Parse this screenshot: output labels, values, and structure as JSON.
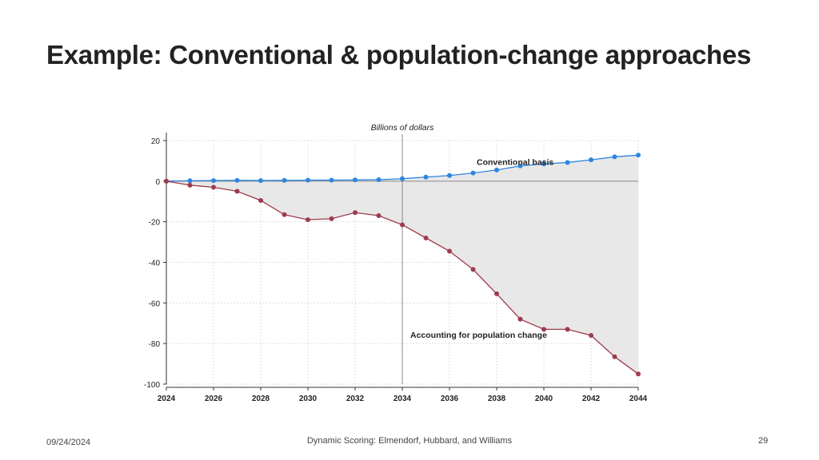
{
  "slide": {
    "title": "Example: Conventional & population-change approaches",
    "footer_date": "09/24/2024",
    "footer_center": "Dynamic Scoring: Elmendorf, Hubbard, and Williams",
    "page_number": "29"
  },
  "chart_data": {
    "type": "line",
    "title": "Billions of dollars",
    "xlabel": "",
    "ylabel": "",
    "x": [
      2024,
      2025,
      2026,
      2027,
      2028,
      2029,
      2030,
      2031,
      2032,
      2033,
      2034,
      2035,
      2036,
      2037,
      2038,
      2039,
      2040,
      2041,
      2042,
      2043,
      2044
    ],
    "xticks": [
      2024,
      2026,
      2028,
      2030,
      2032,
      2034,
      2036,
      2038,
      2040,
      2042,
      2044
    ],
    "yticks": [
      20,
      0,
      -20,
      -40,
      -60,
      -80,
      -100
    ],
    "xlim": [
      2024,
      2044
    ],
    "ylim": [
      -100,
      20
    ],
    "reference_lines": {
      "x": 2034,
      "y": 0
    },
    "grid": true,
    "shaded_between_series": true,
    "colors": {
      "conventional": "#2e86de",
      "population": "#9e3b4e",
      "fill": "#e8e8e8",
      "axis": "#333333",
      "grid": "#cccccc",
      "refline": "#888888"
    },
    "series": [
      {
        "name": "Conventional basis",
        "values": [
          0,
          0.2,
          0.3,
          0.4,
          0.3,
          0.4,
          0.5,
          0.5,
          0.6,
          0.7,
          1.2,
          2.0,
          2.8,
          4.0,
          5.5,
          7.5,
          8.5,
          9.2,
          10.5,
          12.0,
          12.8
        ]
      },
      {
        "name": "Accounting for population change",
        "values": [
          0,
          -2,
          -3,
          -5,
          -9.5,
          -16.5,
          -19,
          -18.5,
          -15.5,
          -17,
          -21.5,
          -28,
          -34.5,
          -43.5,
          -55.5,
          -68,
          -73,
          -73,
          -76,
          -86.5,
          -95
        ]
      }
    ]
  }
}
